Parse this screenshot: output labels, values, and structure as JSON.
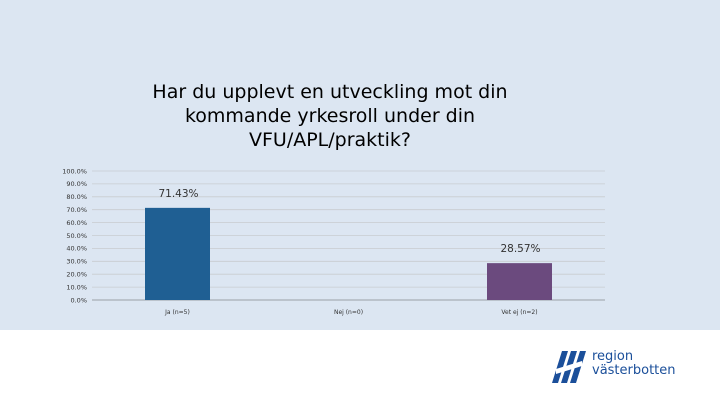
{
  "chart_data": {
    "type": "bar",
    "title_lines": [
      "Har du upplevt en utveckling mot din",
      "kommande yrkesroll under din",
      "VFU/APL/praktik?"
    ],
    "categories": [
      "Ja (n=5)",
      "Nej (n=0)",
      "Vet ej (n=2)"
    ],
    "values": [
      71.43,
      0,
      28.57
    ],
    "data_labels": [
      "71.43%",
      "",
      "28.57%"
    ],
    "bar_colors": [
      "#1f5f93",
      "#1f5f93",
      "#6b4a7e"
    ],
    "yticks": [
      "0.0%",
      "10.0%",
      "20.0%",
      "30.0%",
      "40.0%",
      "50.0%",
      "60.0%",
      "70.0%",
      "80.0%",
      "90.0%",
      "100.0%"
    ],
    "ylim": [
      0,
      100
    ],
    "grid": true,
    "xlabel": "",
    "ylabel": ""
  },
  "logo": {
    "line1": "region",
    "line2": "västerbotten",
    "color": "#1b4f9a",
    "icon": "region-vasterbotten-mark-icon"
  },
  "theme": {
    "background": "#dce6f2"
  }
}
